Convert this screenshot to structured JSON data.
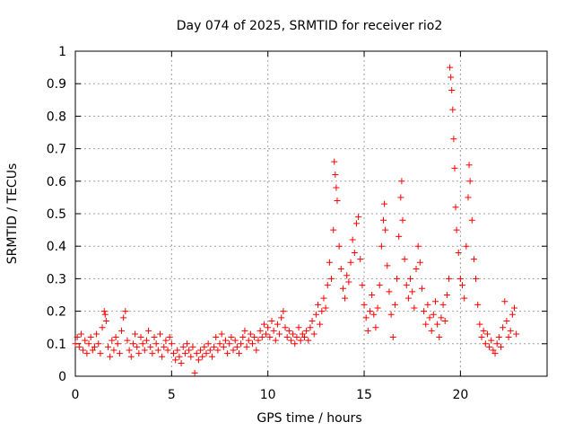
{
  "chart_data": {
    "type": "scatter",
    "title": "Day 074 of 2025, SRMTID for receiver rio2",
    "xlabel": "GPS time / hours",
    "ylabel": "SRMTID / TECUs",
    "xlim": [
      0,
      24.5
    ],
    "ylim": [
      0,
      1
    ],
    "x_ticks": [
      0,
      5,
      10,
      15,
      20
    ],
    "y_ticks": [
      0,
      0.1,
      0.2,
      0.3,
      0.4,
      0.5,
      0.6,
      0.7,
      0.8,
      0.9,
      1
    ],
    "x_tick_labels": [
      "0",
      "5",
      "10",
      "15",
      "20"
    ],
    "y_tick_labels": [
      "0",
      "0.1",
      "0.2",
      "0.3",
      "0.4",
      "0.5",
      "0.6",
      "0.7",
      "0.8",
      "0.9",
      "1"
    ],
    "grid": true,
    "marker": "+",
    "color": "#ff0000",
    "series": [
      {
        "name": "SRMTID",
        "points": [
          [
            0.0,
            0.1
          ],
          [
            0.1,
            0.12
          ],
          [
            0.2,
            0.09
          ],
          [
            0.3,
            0.13
          ],
          [
            0.4,
            0.08
          ],
          [
            0.5,
            0.11
          ],
          [
            0.6,
            0.07
          ],
          [
            0.7,
            0.1
          ],
          [
            0.8,
            0.12
          ],
          [
            0.9,
            0.08
          ],
          [
            1.0,
            0.09
          ],
          [
            1.1,
            0.13
          ],
          [
            1.2,
            0.1
          ],
          [
            1.3,
            0.07
          ],
          [
            1.4,
            0.15
          ],
          [
            1.5,
            0.2
          ],
          [
            1.55,
            0.19
          ],
          [
            1.6,
            0.17
          ],
          [
            1.7,
            0.09
          ],
          [
            1.8,
            0.06
          ],
          [
            1.9,
            0.11
          ],
          [
            2.0,
            0.08
          ],
          [
            2.1,
            0.12
          ],
          [
            2.2,
            0.1
          ],
          [
            2.3,
            0.07
          ],
          [
            2.4,
            0.14
          ],
          [
            2.5,
            0.18
          ],
          [
            2.6,
            0.2
          ],
          [
            2.7,
            0.11
          ],
          [
            2.8,
            0.08
          ],
          [
            2.9,
            0.06
          ],
          [
            3.0,
            0.1
          ],
          [
            3.1,
            0.13
          ],
          [
            3.2,
            0.09
          ],
          [
            3.3,
            0.07
          ],
          [
            3.4,
            0.12
          ],
          [
            3.5,
            0.1
          ],
          [
            3.6,
            0.08
          ],
          [
            3.7,
            0.11
          ],
          [
            3.8,
            0.14
          ],
          [
            3.9,
            0.09
          ],
          [
            4.0,
            0.07
          ],
          [
            4.1,
            0.12
          ],
          [
            4.2,
            0.1
          ],
          [
            4.3,
            0.08
          ],
          [
            4.4,
            0.13
          ],
          [
            4.5,
            0.06
          ],
          [
            4.6,
            0.09
          ],
          [
            4.7,
            0.11
          ],
          [
            4.8,
            0.08
          ],
          [
            4.9,
            0.12
          ],
          [
            5.0,
            0.1
          ],
          [
            5.1,
            0.07
          ],
          [
            5.2,
            0.05
          ],
          [
            5.3,
            0.08
          ],
          [
            5.4,
            0.06
          ],
          [
            5.5,
            0.04
          ],
          [
            5.6,
            0.09
          ],
          [
            5.7,
            0.07
          ],
          [
            5.8,
            0.1
          ],
          [
            5.9,
            0.08
          ],
          [
            6.0,
            0.06
          ],
          [
            6.1,
            0.09
          ],
          [
            6.2,
            0.01
          ],
          [
            6.3,
            0.07
          ],
          [
            6.4,
            0.05
          ],
          [
            6.5,
            0.08
          ],
          [
            6.6,
            0.06
          ],
          [
            6.7,
            0.09
          ],
          [
            6.8,
            0.07
          ],
          [
            6.9,
            0.1
          ],
          [
            7.0,
            0.08
          ],
          [
            7.1,
            0.06
          ],
          [
            7.2,
            0.09
          ],
          [
            7.3,
            0.12
          ],
          [
            7.4,
            0.08
          ],
          [
            7.5,
            0.1
          ],
          [
            7.6,
            0.13
          ],
          [
            7.7,
            0.09
          ],
          [
            7.8,
            0.11
          ],
          [
            7.9,
            0.07
          ],
          [
            8.0,
            0.1
          ],
          [
            8.1,
            0.12
          ],
          [
            8.2,
            0.08
          ],
          [
            8.3,
            0.11
          ],
          [
            8.4,
            0.09
          ],
          [
            8.5,
            0.07
          ],
          [
            8.6,
            0.1
          ],
          [
            8.7,
            0.12
          ],
          [
            8.8,
            0.14
          ],
          [
            8.9,
            0.09
          ],
          [
            9.0,
            0.11
          ],
          [
            9.1,
            0.13
          ],
          [
            9.2,
            0.1
          ],
          [
            9.3,
            0.12
          ],
          [
            9.4,
            0.08
          ],
          [
            9.5,
            0.11
          ],
          [
            9.6,
            0.14
          ],
          [
            9.7,
            0.12
          ],
          [
            9.8,
            0.16
          ],
          [
            9.9,
            0.13
          ],
          [
            10.0,
            0.15
          ],
          [
            10.1,
            0.12
          ],
          [
            10.2,
            0.17
          ],
          [
            10.3,
            0.14
          ],
          [
            10.4,
            0.11
          ],
          [
            10.5,
            0.16
          ],
          [
            10.6,
            0.13
          ],
          [
            10.7,
            0.18
          ],
          [
            10.8,
            0.2
          ],
          [
            10.9,
            0.15
          ],
          [
            11.0,
            0.12
          ],
          [
            11.1,
            0.14
          ],
          [
            11.2,
            0.11
          ],
          [
            11.3,
            0.13
          ],
          [
            11.4,
            0.1
          ],
          [
            11.5,
            0.12
          ],
          [
            11.6,
            0.15
          ],
          [
            11.7,
            0.11
          ],
          [
            11.8,
            0.13
          ],
          [
            11.9,
            0.12
          ],
          [
            12.0,
            0.14
          ],
          [
            12.1,
            0.11
          ],
          [
            12.2,
            0.15
          ],
          [
            12.3,
            0.17
          ],
          [
            12.4,
            0.13
          ],
          [
            12.5,
            0.19
          ],
          [
            12.6,
            0.22
          ],
          [
            12.7,
            0.16
          ],
          [
            12.8,
            0.2
          ],
          [
            12.9,
            0.24
          ],
          [
            13.0,
            0.21
          ],
          [
            13.1,
            0.28
          ],
          [
            13.2,
            0.35
          ],
          [
            13.3,
            0.3
          ],
          [
            13.4,
            0.45
          ],
          [
            13.45,
            0.66
          ],
          [
            13.5,
            0.62
          ],
          [
            13.55,
            0.58
          ],
          [
            13.6,
            0.54
          ],
          [
            13.7,
            0.4
          ],
          [
            13.8,
            0.33
          ],
          [
            13.9,
            0.27
          ],
          [
            14.0,
            0.24
          ],
          [
            14.1,
            0.31
          ],
          [
            14.2,
            0.29
          ],
          [
            14.3,
            0.35
          ],
          [
            14.4,
            0.42
          ],
          [
            14.5,
            0.38
          ],
          [
            14.6,
            0.47
          ],
          [
            14.7,
            0.49
          ],
          [
            14.8,
            0.36
          ],
          [
            14.9,
            0.28
          ],
          [
            15.0,
            0.22
          ],
          [
            15.1,
            0.18
          ],
          [
            15.2,
            0.14
          ],
          [
            15.3,
            0.2
          ],
          [
            15.4,
            0.25
          ],
          [
            15.5,
            0.19
          ],
          [
            15.6,
            0.15
          ],
          [
            15.7,
            0.21
          ],
          [
            15.8,
            0.28
          ],
          [
            15.9,
            0.4
          ],
          [
            16.0,
            0.48
          ],
          [
            16.05,
            0.53
          ],
          [
            16.1,
            0.45
          ],
          [
            16.2,
            0.34
          ],
          [
            16.3,
            0.26
          ],
          [
            16.4,
            0.19
          ],
          [
            16.5,
            0.12
          ],
          [
            16.6,
            0.22
          ],
          [
            16.7,
            0.3
          ],
          [
            16.8,
            0.43
          ],
          [
            16.9,
            0.55
          ],
          [
            16.95,
            0.6
          ],
          [
            17.0,
            0.48
          ],
          [
            17.1,
            0.36
          ],
          [
            17.2,
            0.28
          ],
          [
            17.3,
            0.24
          ],
          [
            17.4,
            0.3
          ],
          [
            17.5,
            0.26
          ],
          [
            17.6,
            0.21
          ],
          [
            17.7,
            0.33
          ],
          [
            17.8,
            0.4
          ],
          [
            17.9,
            0.35
          ],
          [
            18.0,
            0.27
          ],
          [
            18.1,
            0.2
          ],
          [
            18.2,
            0.16
          ],
          [
            18.3,
            0.22
          ],
          [
            18.4,
            0.18
          ],
          [
            18.5,
            0.14
          ],
          [
            18.6,
            0.19
          ],
          [
            18.7,
            0.23
          ],
          [
            18.8,
            0.16
          ],
          [
            18.9,
            0.12
          ],
          [
            19.0,
            0.18
          ],
          [
            19.1,
            0.22
          ],
          [
            19.2,
            0.17
          ],
          [
            19.3,
            0.25
          ],
          [
            19.4,
            0.3
          ],
          [
            19.45,
            0.95
          ],
          [
            19.5,
            0.92
          ],
          [
            19.55,
            0.88
          ],
          [
            19.6,
            0.82
          ],
          [
            19.65,
            0.73
          ],
          [
            19.7,
            0.64
          ],
          [
            19.75,
            0.52
          ],
          [
            19.8,
            0.45
          ],
          [
            19.9,
            0.38
          ],
          [
            20.0,
            0.3
          ],
          [
            20.1,
            0.28
          ],
          [
            20.2,
            0.24
          ],
          [
            20.3,
            0.4
          ],
          [
            20.4,
            0.55
          ],
          [
            20.45,
            0.65
          ],
          [
            20.5,
            0.6
          ],
          [
            20.6,
            0.48
          ],
          [
            20.7,
            0.36
          ],
          [
            20.8,
            0.3
          ],
          [
            20.9,
            0.22
          ],
          [
            21.0,
            0.16
          ],
          [
            21.1,
            0.12
          ],
          [
            21.2,
            0.14
          ],
          [
            21.3,
            0.1
          ],
          [
            21.4,
            0.13
          ],
          [
            21.5,
            0.09
          ],
          [
            21.6,
            0.11
          ],
          [
            21.7,
            0.08
          ],
          [
            21.8,
            0.07
          ],
          [
            21.9,
            0.1
          ],
          [
            22.0,
            0.12
          ],
          [
            22.1,
            0.09
          ],
          [
            22.2,
            0.15
          ],
          [
            22.3,
            0.23
          ],
          [
            22.4,
            0.17
          ],
          [
            22.5,
            0.12
          ],
          [
            22.6,
            0.14
          ],
          [
            22.7,
            0.19
          ],
          [
            22.8,
            0.21
          ],
          [
            22.9,
            0.13
          ]
        ]
      }
    ]
  }
}
